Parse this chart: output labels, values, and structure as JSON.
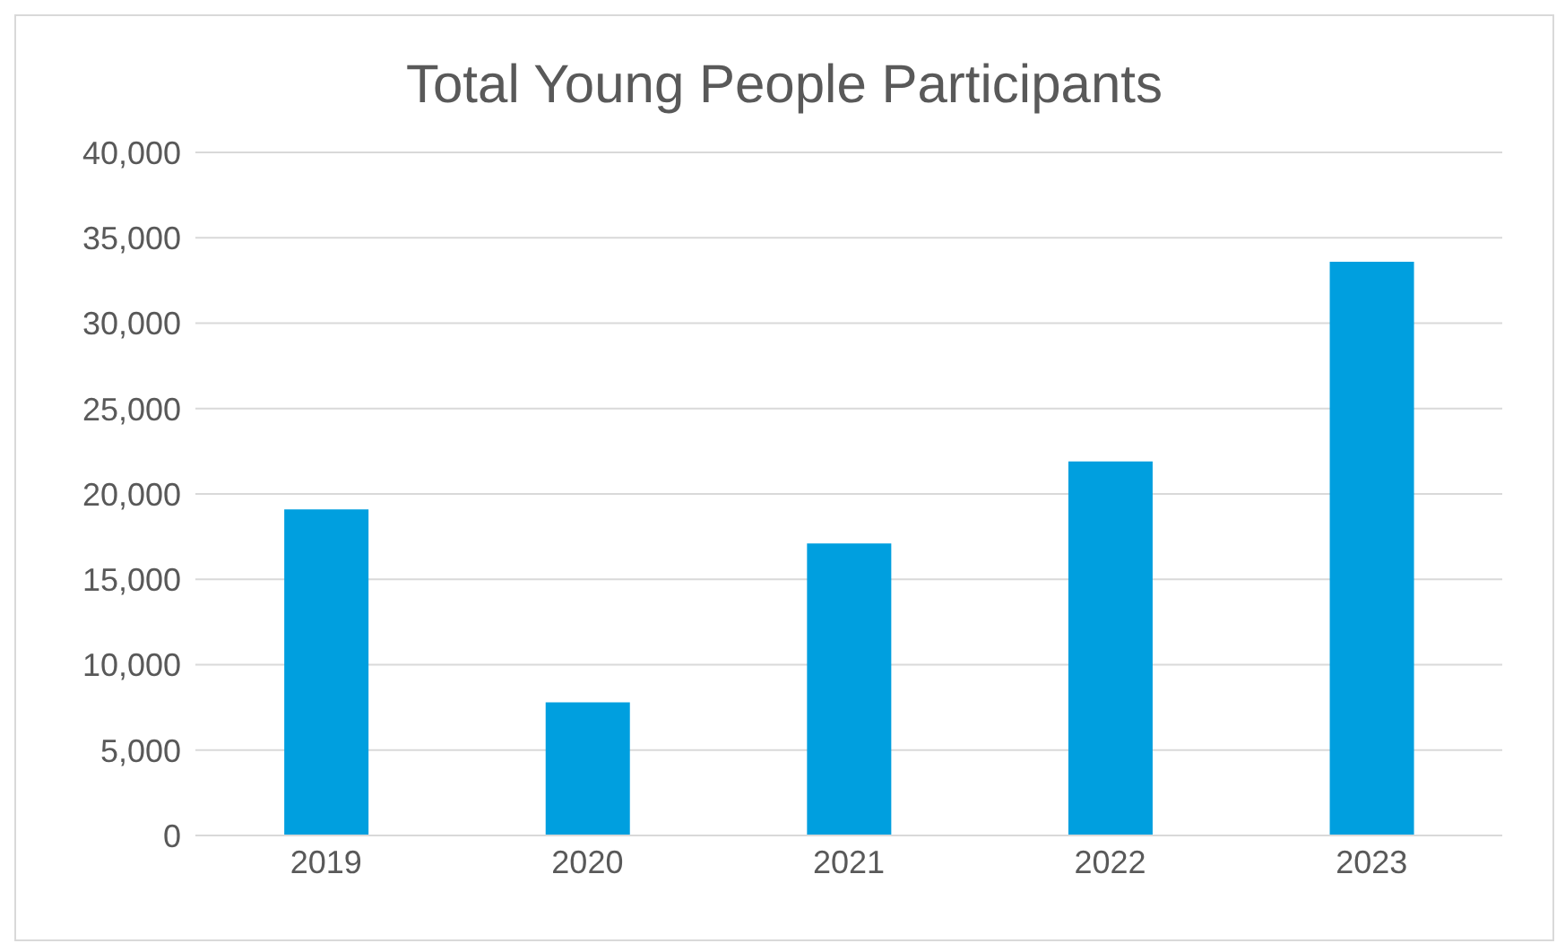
{
  "chart_data": {
    "type": "bar",
    "title": "Total Young People Participants",
    "categories": [
      "2019",
      "2020",
      "2021",
      "2022",
      "2023"
    ],
    "values": [
      19100,
      7800,
      17100,
      21900,
      33600
    ],
    "color": "#009fdf",
    "ylim": [
      0,
      40000
    ],
    "yticks": [
      {
        "value": 0,
        "label": "0"
      },
      {
        "value": 5000,
        "label": "5,000"
      },
      {
        "value": 10000,
        "label": "10,000"
      },
      {
        "value": 15000,
        "label": "15,000"
      },
      {
        "value": 20000,
        "label": "20,000"
      },
      {
        "value": 25000,
        "label": "25,000"
      },
      {
        "value": 30000,
        "label": "30,000"
      },
      {
        "value": 35000,
        "label": "35,000"
      },
      {
        "value": 40000,
        "label": "40,000"
      }
    ],
    "grid": "y"
  }
}
